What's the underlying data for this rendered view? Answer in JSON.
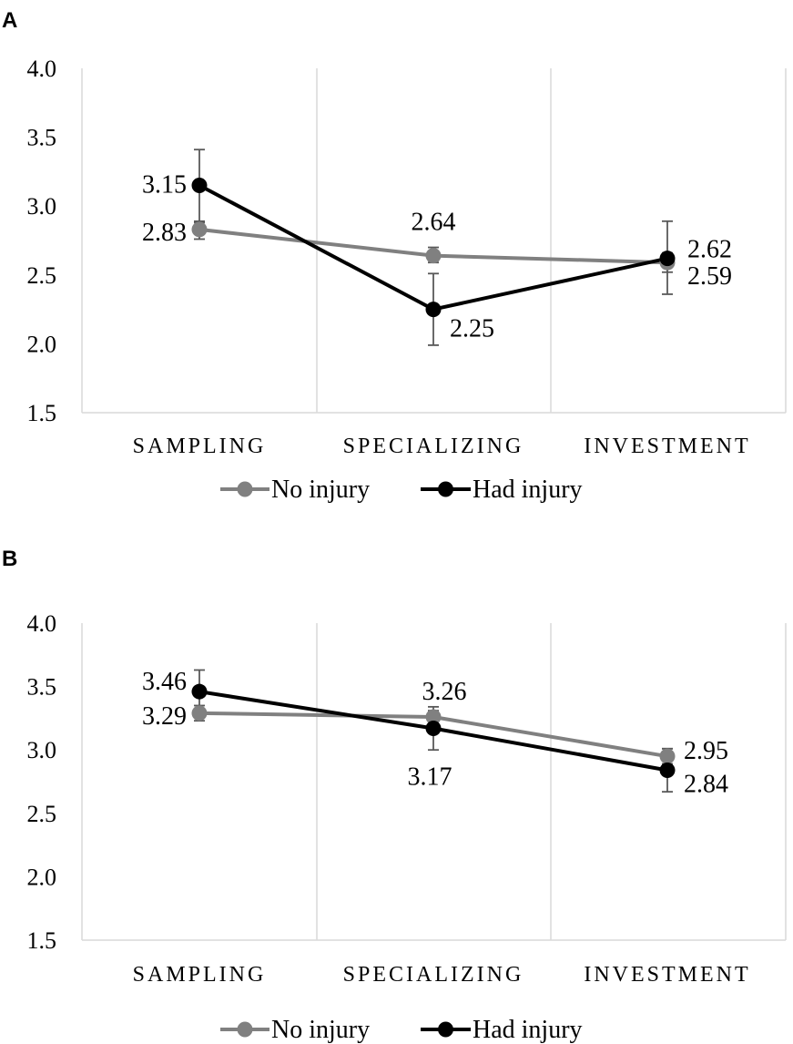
{
  "chart_data": [
    {
      "panel": "A",
      "type": "line",
      "categories": [
        "SAMPLING",
        "SPECIALIZING",
        "INVESTMENT"
      ],
      "ylim": [
        1.5,
        4.0
      ],
      "yticks": [
        "1.5",
        "2.0",
        "2.5",
        "3.0",
        "3.5",
        "4.0"
      ],
      "ytick_values": [
        1.5,
        2.0,
        2.5,
        3.0,
        3.5,
        4.0
      ],
      "series": [
        {
          "name": "No injury",
          "color": "#808080",
          "values": [
            2.83,
            2.64,
            2.59
          ],
          "labels": [
            "2.83",
            "2.64",
            "2.59"
          ],
          "err_low": [
            2.76,
            2.59,
            2.52
          ],
          "err_high": [
            2.89,
            2.7,
            2.66
          ]
        },
        {
          "name": "Had injury",
          "color": "#000000",
          "values": [
            3.15,
            2.25,
            2.62
          ],
          "labels": [
            "3.15",
            "2.25",
            "2.62"
          ],
          "err_low": [
            2.88,
            1.99,
            2.36
          ],
          "err_high": [
            3.41,
            2.51,
            2.89
          ]
        }
      ]
    },
    {
      "panel": "B",
      "type": "line",
      "categories": [
        "SAMPLING",
        "SPECIALIZING",
        "INVESTMENT"
      ],
      "ylim": [
        1.5,
        4.0
      ],
      "yticks": [
        "1.5",
        "2.0",
        "2.5",
        "3.0",
        "3.5",
        "4.0"
      ],
      "ytick_values": [
        1.5,
        2.0,
        2.5,
        3.0,
        3.5,
        4.0
      ],
      "series": [
        {
          "name": "No injury",
          "color": "#808080",
          "values": [
            3.29,
            3.26,
            2.95
          ],
          "labels": [
            "3.29",
            "3.26",
            "2.95"
          ],
          "err_low": [
            3.23,
            3.21,
            2.89
          ],
          "err_high": [
            3.35,
            3.31,
            3.01
          ]
        },
        {
          "name": "Had injury",
          "color": "#000000",
          "values": [
            3.46,
            3.17,
            2.84
          ],
          "labels": [
            "3.46",
            "3.17",
            "2.84"
          ],
          "err_low": [
            3.29,
            3.0,
            2.67
          ],
          "err_high": [
            3.63,
            3.34,
            3.01
          ]
        }
      ]
    }
  ]
}
